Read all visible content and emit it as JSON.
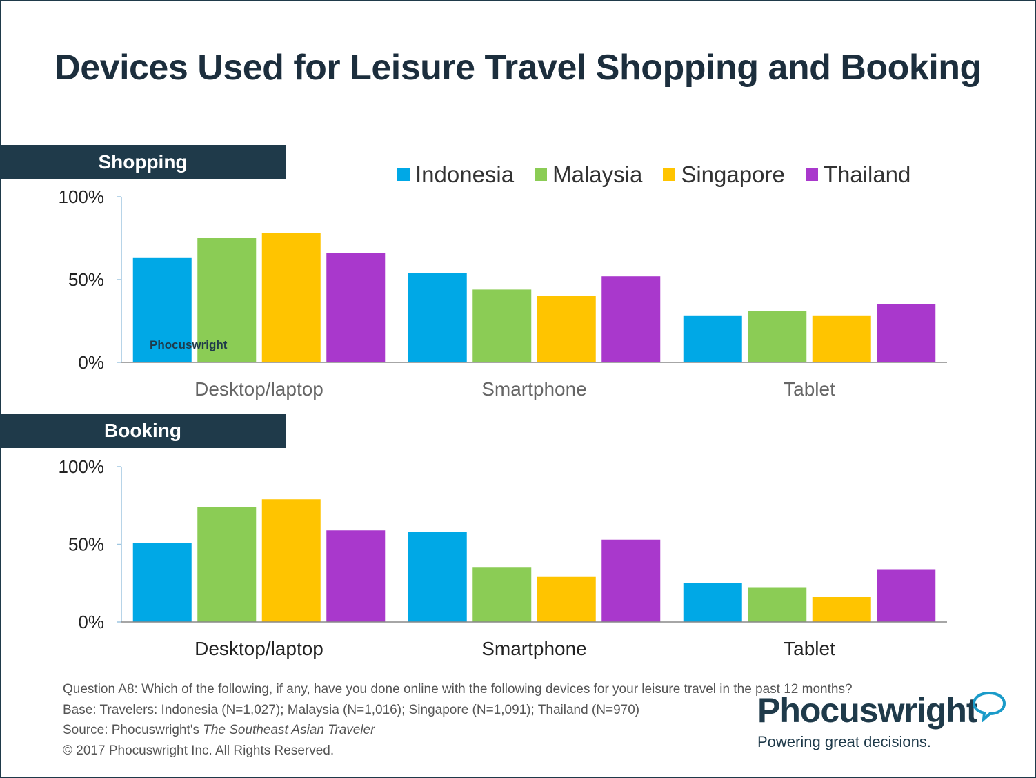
{
  "title": "Devices Used for Leisure Travel Shopping and Booking",
  "colors": {
    "Indonesia": "#00a8e6",
    "Malaysia": "#8bcc55",
    "Singapore": "#ffc400",
    "Thailand": "#a938cc",
    "header": "#1f3a4a"
  },
  "legend": [
    "Indonesia",
    "Malaysia",
    "Singapore",
    "Thailand"
  ],
  "watermark": "Phocuswright",
  "chart_data": [
    {
      "type": "bar",
      "title": "Shopping",
      "categories": [
        "Desktop/laptop",
        "Smartphone",
        "Tablet"
      ],
      "yticks": [
        "100%",
        "50%",
        "0%"
      ],
      "ylim": [
        0,
        100
      ],
      "legend_position": "top-right",
      "series": [
        {
          "name": "Indonesia",
          "values": [
            63,
            54,
            28
          ]
        },
        {
          "name": "Malaysia",
          "values": [
            75,
            44,
            31
          ]
        },
        {
          "name": "Singapore",
          "values": [
            78,
            40,
            28
          ]
        },
        {
          "name": "Thailand",
          "values": [
            66,
            52,
            35
          ]
        }
      ]
    },
    {
      "type": "bar",
      "title": "Booking",
      "categories": [
        "Desktop/laptop",
        "Smartphone",
        "Tablet"
      ],
      "yticks": [
        "100%",
        "50%",
        "0%"
      ],
      "ylim": [
        0,
        100
      ],
      "series": [
        {
          "name": "Indonesia",
          "values": [
            51,
            58,
            25
          ]
        },
        {
          "name": "Malaysia",
          "values": [
            74,
            35,
            22
          ]
        },
        {
          "name": "Singapore",
          "values": [
            79,
            29,
            16
          ]
        },
        {
          "name": "Thailand",
          "values": [
            59,
            53,
            34
          ]
        }
      ]
    }
  ],
  "notes": {
    "question": "Question A8: Which of the following, if any, have you done online with the following devices for your leisure travel in the past 12 months?",
    "base": "Base: Travelers: Indonesia (N=1,027); Malaysia (N=1,016); Singapore (N=1,091); Thailand (N=970)",
    "source_prefix": "Source: Phocuswright's ",
    "source_title": "The Southeast Asian Traveler",
    "copyright": "© 2017 Phocuswright Inc. All Rights Reserved."
  },
  "brand": {
    "name": "Phocuswright",
    "tagline": "Powering great decisions."
  }
}
